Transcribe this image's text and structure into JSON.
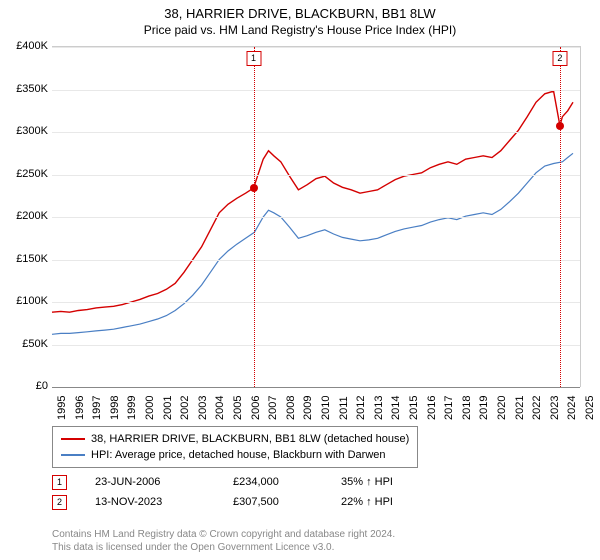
{
  "title": "38, HARRIER DRIVE, BLACKBURN, BB1 8LW",
  "subtitle": "Price paid vs. HM Land Registry's House Price Index (HPI)",
  "chart": {
    "type": "line",
    "background_color": "#ffffff",
    "grid_color": "#e8e8e8",
    "ylim": [
      0,
      400000
    ],
    "ytick_step": 50000,
    "yticks": [
      "£0",
      "£50K",
      "£100K",
      "£150K",
      "£200K",
      "£250K",
      "£300K",
      "£350K",
      "£400K"
    ],
    "xlim": [
      1995,
      2025
    ],
    "xticks": [
      1995,
      1996,
      1997,
      1998,
      1999,
      2000,
      2001,
      2002,
      2003,
      2004,
      2005,
      2006,
      2007,
      2008,
      2009,
      2010,
      2011,
      2012,
      2013,
      2014,
      2015,
      2016,
      2017,
      2018,
      2019,
      2020,
      2021,
      2022,
      2023,
      2024,
      2025
    ],
    "series": [
      {
        "name": "38, HARRIER DRIVE, BLACKBURN, BB1 8LW (detached house)",
        "color": "#d40000",
        "line_width": 1.4,
        "data": [
          [
            1995.0,
            88000
          ],
          [
            1995.5,
            89000
          ],
          [
            1996.0,
            88000
          ],
          [
            1996.5,
            90000
          ],
          [
            1997.0,
            91000
          ],
          [
            1997.5,
            93000
          ],
          [
            1998.0,
            94000
          ],
          [
            1998.5,
            95000
          ],
          [
            1999.0,
            97000
          ],
          [
            1999.5,
            100000
          ],
          [
            2000.0,
            103000
          ],
          [
            2000.5,
            107000
          ],
          [
            2001.0,
            110000
          ],
          [
            2001.5,
            115000
          ],
          [
            2002.0,
            122000
          ],
          [
            2002.5,
            135000
          ],
          [
            2003.0,
            150000
          ],
          [
            2003.5,
            165000
          ],
          [
            2004.0,
            185000
          ],
          [
            2004.5,
            205000
          ],
          [
            2005.0,
            215000
          ],
          [
            2005.5,
            222000
          ],
          [
            2006.0,
            228000
          ],
          [
            2006.45,
            234000
          ],
          [
            2007.0,
            268000
          ],
          [
            2007.3,
            278000
          ],
          [
            2007.6,
            272000
          ],
          [
            2008.0,
            265000
          ],
          [
            2008.5,
            248000
          ],
          [
            2009.0,
            232000
          ],
          [
            2009.5,
            238000
          ],
          [
            2010.0,
            245000
          ],
          [
            2010.5,
            248000
          ],
          [
            2011.0,
            240000
          ],
          [
            2011.5,
            235000
          ],
          [
            2012.0,
            232000
          ],
          [
            2012.5,
            228000
          ],
          [
            2013.0,
            230000
          ],
          [
            2013.5,
            232000
          ],
          [
            2014.0,
            238000
          ],
          [
            2014.5,
            244000
          ],
          [
            2015.0,
            248000
          ],
          [
            2015.5,
            250000
          ],
          [
            2016.0,
            252000
          ],
          [
            2016.5,
            258000
          ],
          [
            2017.0,
            262000
          ],
          [
            2017.5,
            265000
          ],
          [
            2018.0,
            262000
          ],
          [
            2018.5,
            268000
          ],
          [
            2019.0,
            270000
          ],
          [
            2019.5,
            272000
          ],
          [
            2020.0,
            270000
          ],
          [
            2020.5,
            278000
          ],
          [
            2021.0,
            290000
          ],
          [
            2021.5,
            302000
          ],
          [
            2022.0,
            318000
          ],
          [
            2022.5,
            335000
          ],
          [
            2023.0,
            345000
          ],
          [
            2023.5,
            348000
          ],
          [
            2023.86,
            307500
          ],
          [
            2024.0,
            318000
          ],
          [
            2024.3,
            325000
          ],
          [
            2024.6,
            335000
          ]
        ]
      },
      {
        "name": "HPI: Average price, detached house, Blackburn with Darwen",
        "color": "#4a7fc4",
        "line_width": 1.2,
        "data": [
          [
            1995.0,
            62000
          ],
          [
            1995.5,
            63000
          ],
          [
            1996.0,
            63000
          ],
          [
            1996.5,
            64000
          ],
          [
            1997.0,
            65000
          ],
          [
            1997.5,
            66000
          ],
          [
            1998.0,
            67000
          ],
          [
            1998.5,
            68000
          ],
          [
            1999.0,
            70000
          ],
          [
            1999.5,
            72000
          ],
          [
            2000.0,
            74000
          ],
          [
            2000.5,
            77000
          ],
          [
            2001.0,
            80000
          ],
          [
            2001.5,
            84000
          ],
          [
            2002.0,
            90000
          ],
          [
            2002.5,
            98000
          ],
          [
            2003.0,
            108000
          ],
          [
            2003.5,
            120000
          ],
          [
            2004.0,
            135000
          ],
          [
            2004.5,
            150000
          ],
          [
            2005.0,
            160000
          ],
          [
            2005.5,
            168000
          ],
          [
            2006.0,
            175000
          ],
          [
            2006.5,
            182000
          ],
          [
            2007.0,
            200000
          ],
          [
            2007.3,
            208000
          ],
          [
            2007.6,
            205000
          ],
          [
            2008.0,
            200000
          ],
          [
            2008.5,
            188000
          ],
          [
            2009.0,
            175000
          ],
          [
            2009.5,
            178000
          ],
          [
            2010.0,
            182000
          ],
          [
            2010.5,
            185000
          ],
          [
            2011.0,
            180000
          ],
          [
            2011.5,
            176000
          ],
          [
            2012.0,
            174000
          ],
          [
            2012.5,
            172000
          ],
          [
            2013.0,
            173000
          ],
          [
            2013.5,
            175000
          ],
          [
            2014.0,
            179000
          ],
          [
            2014.5,
            183000
          ],
          [
            2015.0,
            186000
          ],
          [
            2015.5,
            188000
          ],
          [
            2016.0,
            190000
          ],
          [
            2016.5,
            194000
          ],
          [
            2017.0,
            197000
          ],
          [
            2017.5,
            199000
          ],
          [
            2018.0,
            197000
          ],
          [
            2018.5,
            201000
          ],
          [
            2019.0,
            203000
          ],
          [
            2019.5,
            205000
          ],
          [
            2020.0,
            203000
          ],
          [
            2020.5,
            209000
          ],
          [
            2021.0,
            218000
          ],
          [
            2021.5,
            228000
          ],
          [
            2022.0,
            240000
          ],
          [
            2022.5,
            252000
          ],
          [
            2023.0,
            260000
          ],
          [
            2023.5,
            263000
          ],
          [
            2024.0,
            265000
          ],
          [
            2024.3,
            270000
          ],
          [
            2024.6,
            275000
          ]
        ]
      }
    ],
    "markers": [
      {
        "n": "1",
        "x": 2006.45,
        "y": 234000,
        "box_y_side": "top"
      },
      {
        "n": "2",
        "x": 2023.86,
        "y": 307500,
        "box_y_side": "top"
      }
    ]
  },
  "legend": {
    "items": [
      {
        "color": "#d40000",
        "label": "38, HARRIER DRIVE, BLACKBURN, BB1 8LW (detached house)"
      },
      {
        "color": "#4a7fc4",
        "label": "HPI: Average price, detached house, Blackburn with Darwen"
      }
    ]
  },
  "sales": [
    {
      "n": "1",
      "date": "23-JUN-2006",
      "price": "£234,000",
      "hpi": "35% ↑ HPI"
    },
    {
      "n": "2",
      "date": "13-NOV-2023",
      "price": "£307,500",
      "hpi": "22% ↑ HPI"
    }
  ],
  "footer": {
    "line1": "Contains HM Land Registry data © Crown copyright and database right 2024.",
    "line2": "This data is licensed under the Open Government Licence v3.0."
  }
}
